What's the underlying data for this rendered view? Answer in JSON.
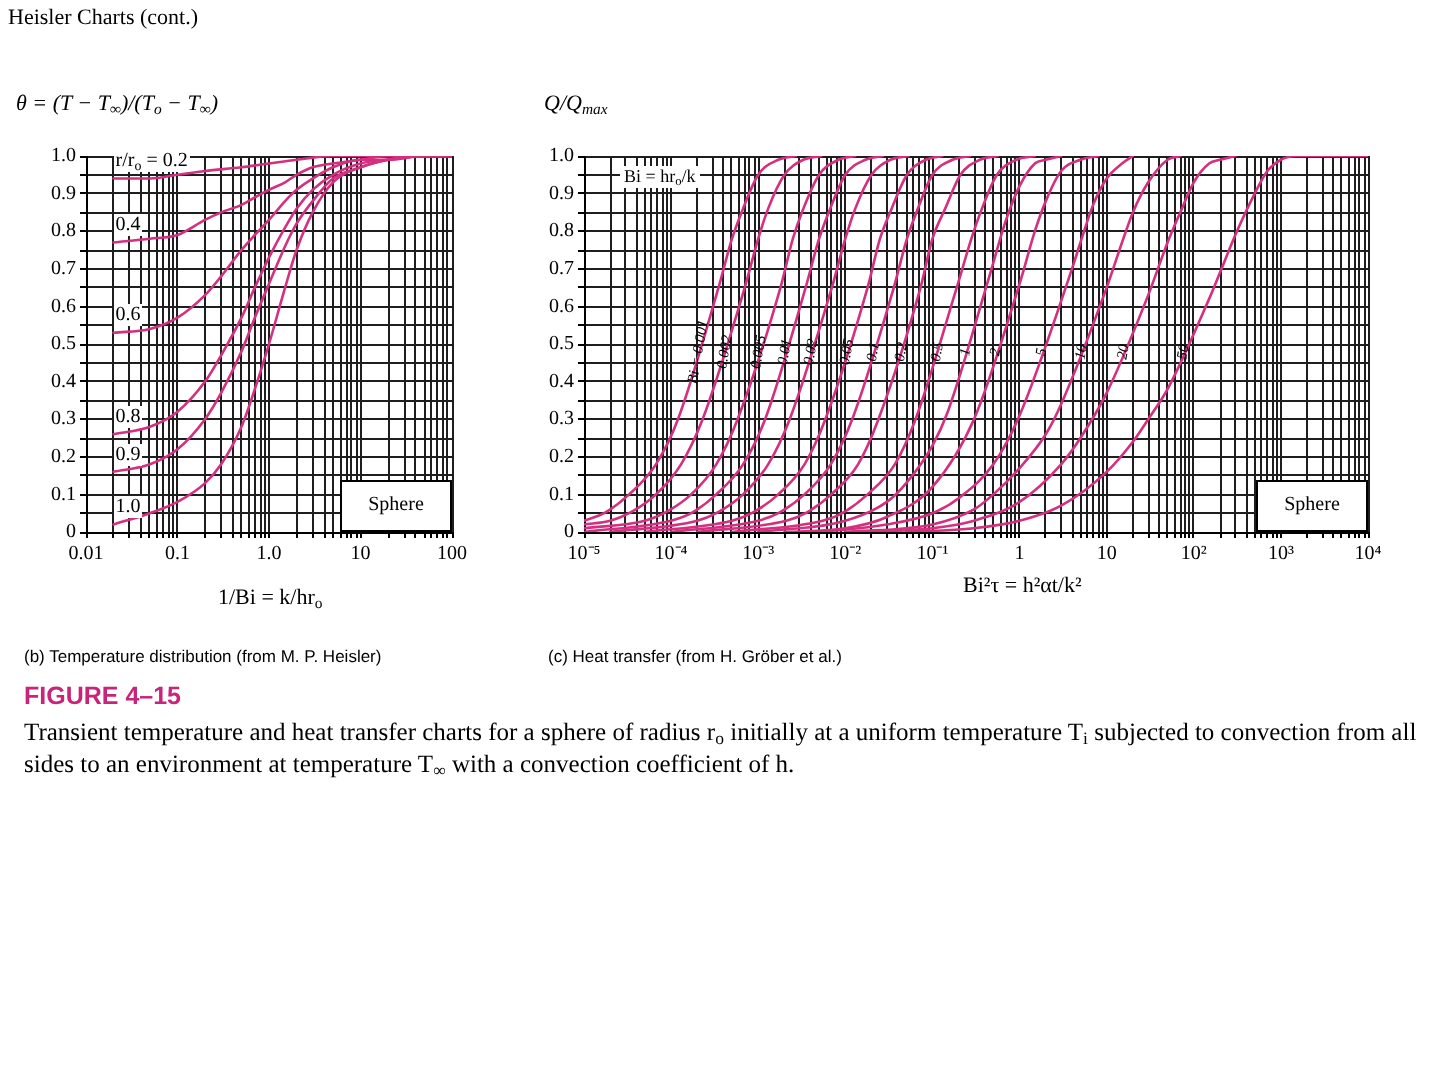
{
  "chart_data": [
    {
      "type": "line",
      "title": "Heisler Charts (cont.)",
      "subtitle": "(b) Temperature distribution (from M. P. Heisler)",
      "ylabel": "θ = (T − T$_{∞}$)/(T$_{o}$ − T$_{∞}$)",
      "xlabel": "1/Bi = k/hr$_{o}$",
      "annotations": [
        "Sphere"
      ],
      "log": "x",
      "grid": true,
      "xlim": [
        0.01,
        100
      ],
      "ylim": [
        0,
        1
      ],
      "xticks": [
        0.01,
        {
          "value": 0.02,
          "label": null
        },
        {
          "value": 0.03,
          "label": null
        },
        {
          "value": 0.04,
          "label": null
        },
        {
          "value": 0.05,
          "label": null
        },
        {
          "value": 0.06,
          "label": null
        },
        {
          "value": 0.07,
          "label": null
        },
        {
          "value": 0.08,
          "label": null
        },
        {
          "value": 0.09,
          "label": null
        },
        0.1,
        {
          "value": 0.2,
          "label": null
        },
        {
          "value": 0.3,
          "label": null
        },
        {
          "value": 0.4,
          "label": null
        },
        {
          "value": 0.5,
          "label": null
        },
        {
          "value": 0.6,
          "label": null
        },
        {
          "value": 0.7,
          "label": null
        },
        {
          "value": 0.8,
          "label": null
        },
        {
          "value": 0.9,
          "label": null
        },
        {
          "value": 1,
          "label": "1.0"
        },
        {
          "value": 2,
          "label": null
        },
        {
          "value": 3,
          "label": null
        },
        {
          "value": 4,
          "label": null
        },
        {
          "value": 5,
          "label": null
        },
        {
          "value": 6,
          "label": null
        },
        {
          "value": 7,
          "label": null
        },
        {
          "value": 8,
          "label": null
        },
        {
          "value": 9,
          "label": null
        },
        10,
        {
          "value": 20,
          "label": null
        },
        {
          "value": 30,
          "label": null
        },
        {
          "value": 40,
          "label": null
        },
        {
          "value": 50,
          "label": null
        },
        {
          "value": 60,
          "label": null
        },
        {
          "value": 70,
          "label": null
        },
        {
          "value": 80,
          "label": null
        },
        {
          "value": 90,
          "label": null
        },
        100
      ],
      "yticks": [
        0,
        {
          "value": 0.05,
          "label": null
        },
        0.1,
        {
          "value": 0.15,
          "label": null
        },
        0.2,
        {
          "value": 0.25,
          "label": null
        },
        0.3,
        {
          "value": 0.35,
          "label": null
        },
        0.4,
        {
          "value": 0.45,
          "label": null
        },
        0.5,
        {
          "value": 0.55,
          "label": null
        },
        0.6,
        {
          "value": 0.65,
          "label": null
        },
        0.7,
        {
          "value": 0.75,
          "label": null
        },
        0.8,
        {
          "value": 0.85,
          "label": null
        },
        0.9,
        {
          "value": 0.95,
          "label": null
        },
        {
          "value": 1,
          "label": "1.0"
        }
      ],
      "series": [
        {
          "name": "r/r$_{o}$ = 0.2",
          "color": "#d4307f",
          "x": [
            0.02,
            0.05,
            0.1,
            0.2,
            0.5,
            1,
            2,
            5,
            100
          ],
          "values": [
            0.94,
            0.94,
            0.95,
            0.96,
            0.97,
            0.98,
            0.99,
            1,
            1
          ]
        },
        {
          "name": "0.4",
          "color": "#d4307f",
          "x": [
            0.02,
            0.05,
            0.1,
            0.2,
            0.3,
            0.5,
            0.7,
            1,
            1.5,
            2,
            3,
            5,
            10,
            20,
            50,
            100
          ],
          "values": [
            0.77,
            0.78,
            0.79,
            0.83,
            0.85,
            0.87,
            0.89,
            0.91,
            0.93,
            0.95,
            0.97,
            0.98,
            0.99,
            1,
            1,
            1
          ]
        },
        {
          "name": "0.6",
          "color": "#d4307f",
          "x": [
            0.02,
            0.05,
            0.1,
            0.2,
            0.3,
            0.5,
            0.7,
            1,
            1.5,
            2,
            3,
            5,
            10,
            20,
            50,
            100
          ],
          "values": [
            0.53,
            0.54,
            0.57,
            0.63,
            0.68,
            0.75,
            0.79,
            0.83,
            0.88,
            0.91,
            0.94,
            0.97,
            0.99,
            0.99,
            1,
            1
          ]
        },
        {
          "name": "0.8",
          "color": "#d4307f",
          "x": [
            0.02,
            0.05,
            0.1,
            0.2,
            0.3,
            0.5,
            0.7,
            1,
            1.5,
            2,
            3,
            5,
            10,
            20,
            50,
            100
          ],
          "values": [
            0.26,
            0.28,
            0.32,
            0.4,
            0.47,
            0.57,
            0.65,
            0.73,
            0.81,
            0.86,
            0.91,
            0.95,
            0.98,
            0.99,
            1,
            1
          ]
        },
        {
          "name": "0.9",
          "color": "#d4307f",
          "x": [
            0.02,
            0.05,
            0.1,
            0.2,
            0.3,
            0.5,
            0.7,
            1,
            1.5,
            2,
            3,
            5,
            10,
            20,
            50,
            100
          ],
          "values": [
            0.16,
            0.18,
            0.22,
            0.3,
            0.37,
            0.48,
            0.57,
            0.66,
            0.76,
            0.82,
            0.88,
            0.94,
            0.97,
            0.99,
            1,
            1
          ]
        },
        {
          "name": "1.0",
          "color": "#d4307f",
          "x": [
            0.02,
            0.05,
            0.1,
            0.2,
            0.3,
            0.5,
            0.7,
            1,
            1.5,
            2,
            3,
            5,
            10,
            20,
            50,
            100
          ],
          "values": [
            0.02,
            0.05,
            0.08,
            0.13,
            0.18,
            0.28,
            0.38,
            0.5,
            0.65,
            0.75,
            0.85,
            0.93,
            0.97,
            0.99,
            1,
            1
          ]
        }
      ]
    },
    {
      "type": "line",
      "subtitle": "(c) Heat transfer (from H. Gröber et al.)",
      "ylabel": "Q/Q$_{max}$",
      "xlabel": "Bi²τ = h²αt/k²",
      "annotations": [
        "Bi = hr$_{o}$/k",
        "Sphere",
        "FIGURE 4–15",
        "Transient temperature and heat transfer charts for a sphere of radius r$_{o}$ initially at a uniform temperature T$_{i}$ subjected to convection from all sides to an environment at temperature T$_{∞}$ with a convection coefficient of h."
      ],
      "log": "x",
      "grid": true,
      "xlim": [
        1e-05,
        10000.0
      ],
      "ylim": [
        0,
        1
      ],
      "xticks": [
        {
          "value": 1e-05,
          "label": "10⁻⁵"
        },
        {
          "value": 2e-05,
          "label": null
        },
        {
          "value": 3e-05,
          "label": null
        },
        {
          "value": 4e-05,
          "label": null
        },
        {
          "value": 5e-05,
          "label": null
        },
        {
          "value": 6e-05,
          "label": null
        },
        {
          "value": 7e-05,
          "label": null
        },
        {
          "value": 8e-05,
          "label": null
        },
        {
          "value": 9e-05,
          "label": null
        },
        {
          "value": 0.0001,
          "label": "10⁻⁴"
        },
        {
          "value": 0.0002,
          "label": null
        },
        {
          "value": 0.0003,
          "label": null
        },
        {
          "value": 0.0004,
          "label": null
        },
        {
          "value": 0.0005,
          "label": null
        },
        {
          "value": 0.0006,
          "label": null
        },
        {
          "value": 0.0007,
          "label": null
        },
        {
          "value": 0.0008,
          "label": null
        },
        {
          "value": 0.0009,
          "label": null
        },
        {
          "value": 0.001,
          "label": "10⁻³"
        },
        {
          "value": 0.002,
          "label": null
        },
        {
          "value": 0.003,
          "label": null
        },
        {
          "value": 0.004,
          "label": null
        },
        {
          "value": 0.005,
          "label": null
        },
        {
          "value": 0.006,
          "label": null
        },
        {
          "value": 0.007,
          "label": null
        },
        {
          "value": 0.008,
          "label": null
        },
        {
          "value": 0.009,
          "label": null
        },
        {
          "value": 0.01,
          "label": "10⁻²"
        },
        {
          "value": 0.02,
          "label": null
        },
        {
          "value": 0.03,
          "label": null
        },
        {
          "value": 0.04,
          "label": null
        },
        {
          "value": 0.05,
          "label": null
        },
        {
          "value": 0.06,
          "label": null
        },
        {
          "value": 0.07,
          "label": null
        },
        {
          "value": 0.08,
          "label": null
        },
        {
          "value": 0.09,
          "label": null
        },
        {
          "value": 0.1,
          "label": "10⁻¹"
        },
        {
          "value": 0.2,
          "label": null
        },
        {
          "value": 0.3,
          "label": null
        },
        {
          "value": 0.4,
          "label": null
        },
        {
          "value": 0.5,
          "label": null
        },
        {
          "value": 0.6,
          "label": null
        },
        {
          "value": 0.7,
          "label": null
        },
        {
          "value": 0.8,
          "label": null
        },
        {
          "value": 0.9,
          "label": null
        },
        1,
        {
          "value": 2,
          "label": null
        },
        {
          "value": 3,
          "label": null
        },
        {
          "value": 4,
          "label": null
        },
        {
          "value": 5,
          "label": null
        },
        {
          "value": 6,
          "label": null
        },
        {
          "value": 7,
          "label": null
        },
        {
          "value": 8,
          "label": null
        },
        {
          "value": 9,
          "label": null
        },
        10,
        {
          "value": 20,
          "label": null
        },
        {
          "value": 30,
          "label": null
        },
        {
          "value": 40,
          "label": null
        },
        {
          "value": 50,
          "label": null
        },
        {
          "value": 60,
          "label": null
        },
        {
          "value": 70,
          "label": null
        },
        {
          "value": 80,
          "label": null
        },
        {
          "value": 90,
          "label": null
        },
        {
          "value": 100,
          "label": "10²"
        },
        {
          "value": 200,
          "label": null
        },
        {
          "value": 300,
          "label": null
        },
        {
          "value": 400,
          "label": null
        },
        {
          "value": 500,
          "label": null
        },
        {
          "value": 600,
          "label": null
        },
        {
          "value": 700,
          "label": null
        },
        {
          "value": 800,
          "label": null
        },
        {
          "value": 900,
          "label": null
        },
        {
          "value": 1000,
          "label": "10³"
        },
        {
          "value": 2000,
          "label": null
        },
        {
          "value": 3000,
          "label": null
        },
        {
          "value": 4000,
          "label": null
        },
        {
          "value": 5000,
          "label": null
        },
        {
          "value": 6000,
          "label": null
        },
        {
          "value": 7000,
          "label": null
        },
        {
          "value": 8000,
          "label": null
        },
        {
          "value": 9000,
          "label": null
        },
        {
          "value": 10000,
          "label": "10⁴"
        }
      ],
      "yticks": [
        0,
        {
          "value": 0.05,
          "label": null
        },
        0.1,
        {
          "value": 0.15,
          "label": null
        },
        0.2,
        {
          "value": 0.25,
          "label": null
        },
        0.3,
        {
          "value": 0.35,
          "label": null
        },
        0.4,
        {
          "value": 0.45,
          "label": null
        },
        0.5,
        {
          "value": 0.55,
          "label": null
        },
        0.6,
        {
          "value": 0.65,
          "label": null
        },
        0.7,
        {
          "value": 0.75,
          "label": null
        },
        0.8,
        {
          "value": 0.85,
          "label": null
        },
        0.9,
        {
          "value": 0.95,
          "label": null
        },
        {
          "value": 1,
          "label": "1.0"
        }
      ],
      "series": [
        {
          "name": "Bi = 0.001",
          "color": "#d4307f",
          "x": [
            1e-05,
            1.7e-05,
            3.3e-05,
            6.7e-05,
            0.00012,
            0.00035,
            0.0005,
            0.00067,
            0.001,
            0.0017,
            0.0027
          ],
          "values": [
            0.03,
            0.05,
            0.1,
            0.18,
            0.3,
            0.65,
            0.78,
            0.86,
            0.95,
            0.99,
            1
          ]
        },
        {
          "name": "0.002",
          "color": "#d4307f",
          "x": [
            1e-05,
            2e-05,
            3.3e-05,
            6.7e-05,
            0.00013,
            0.00023,
            0.0007,
            0.001,
            0.0013,
            0.002,
            0.0033,
            0.0053
          ],
          "values": [
            0.02,
            0.03,
            0.05,
            0.1,
            0.18,
            0.3,
            0.65,
            0.78,
            0.86,
            0.95,
            0.99,
            1
          ]
        },
        {
          "name": "0.005",
          "color": "#d4307f",
          "x": [
            1e-05,
            5e-05,
            8.3e-05,
            0.00017,
            0.00033,
            0.00058,
            0.0018,
            0.0025,
            0.0033,
            0.005,
            0.0083,
            0.013
          ],
          "values": [
            0.01,
            0.03,
            0.05,
            0.1,
            0.18,
            0.3,
            0.65,
            0.78,
            0.86,
            0.95,
            0.99,
            1
          ]
        },
        {
          "name": "0.01",
          "color": "#d4307f",
          "x": [
            1e-05,
            0.0001,
            0.00017,
            0.00033,
            0.00067,
            0.0012,
            0.0035,
            0.005,
            0.0067,
            0.01,
            0.017,
            0.027
          ],
          "values": [
            0,
            0.03,
            0.05,
            0.1,
            0.18,
            0.3,
            0.65,
            0.78,
            0.86,
            0.95,
            0.99,
            1
          ]
        },
        {
          "name": "0.02",
          "color": "#d4307f",
          "x": [
            2e-05,
            0.0002,
            0.00033,
            0.00067,
            0.0013,
            0.0023,
            0.007,
            0.01,
            0.013,
            0.02,
            0.033,
            0.053
          ],
          "values": [
            0,
            0.03,
            0.05,
            0.1,
            0.18,
            0.3,
            0.65,
            0.78,
            0.86,
            0.95,
            0.99,
            1
          ]
        },
        {
          "name": "0.05",
          "color": "#d4307f",
          "x": [
            5e-05,
            0.0005,
            0.00084,
            0.0017,
            0.0034,
            0.0059,
            0.018,
            0.025,
            0.034,
            0.051,
            0.084,
            0.13
          ],
          "values": [
            0,
            0.03,
            0.05,
            0.1,
            0.18,
            0.3,
            0.65,
            0.78,
            0.86,
            0.95,
            0.99,
            1
          ]
        },
        {
          "name": "0.1",
          "color": "#d4307f",
          "x": [
            0.0001,
            0.001,
            0.0017,
            0.0034,
            0.0068,
            0.012,
            0.036,
            0.051,
            0.068,
            0.1,
            0.17,
            0.27
          ],
          "values": [
            0,
            0.03,
            0.05,
            0.1,
            0.18,
            0.3,
            0.65,
            0.78,
            0.86,
            0.95,
            0.99,
            1
          ]
        },
        {
          "name": "0.2",
          "color": "#d4307f",
          "x": [
            0.0002,
            0.0021,
            0.0035,
            0.0069,
            0.014,
            0.024,
            0.073,
            0.1,
            0.14,
            0.21,
            0.35,
            0.56
          ],
          "values": [
            0,
            0.03,
            0.05,
            0.1,
            0.18,
            0.3,
            0.65,
            0.78,
            0.86,
            0.95,
            0.99,
            1
          ]
        },
        {
          "name": "0.5",
          "color": "#d4307f",
          "x": [
            0.0005,
            0.0055,
            0.0092,
            0.018,
            0.037,
            0.064,
            0.19,
            0.28,
            0.37,
            0.55,
            0.92,
            1.5
          ],
          "values": [
            0,
            0.03,
            0.05,
            0.1,
            0.18,
            0.3,
            0.65,
            0.78,
            0.86,
            0.95,
            0.99,
            1
          ]
        },
        {
          "name": "1",
          "color": "#d4307f",
          "x": [
            0.001,
            0.01,
            0.03,
            0.05,
            0.1,
            0.15,
            0.45,
            0.7,
            1,
            1.5,
            2,
            3
          ],
          "values": [
            0,
            0.03,
            0.08,
            0.13,
            0.23,
            0.32,
            0.68,
            0.83,
            0.92,
            0.98,
            0.99,
            1
          ]
        },
        {
          "name": "2",
          "color": "#d4307f",
          "x": [
            0.002,
            0.01,
            0.03,
            0.1,
            0.3,
            1,
            1.5,
            2,
            3,
            5,
            8
          ],
          "values": [
            0,
            0.01,
            0.04,
            0.12,
            0.3,
            0.66,
            0.8,
            0.88,
            0.96,
            0.99,
            1
          ]
        },
        {
          "name": "5",
          "color": "#d4307f",
          "x": [
            0.005,
            0.03,
            0.1,
            0.2,
            0.5,
            1,
            4,
            5,
            7,
            10,
            15,
            20
          ],
          "values": [
            0,
            0.02,
            0.05,
            0.09,
            0.18,
            0.31,
            0.7,
            0.77,
            0.87,
            0.94,
            0.98,
            1
          ]
        },
        {
          "name": "10",
          "color": "#d4307f",
          "x": [
            0.01,
            0.1,
            0.3,
            0.5,
            1,
            2,
            3,
            10,
            15,
            20,
            30,
            50,
            70
          ],
          "values": [
            0,
            0.02,
            0.06,
            0.1,
            0.17,
            0.26,
            0.34,
            0.65,
            0.77,
            0.85,
            0.93,
            0.99,
            1
          ]
        },
        {
          "name": "20",
          "color": "#d4307f",
          "x": [
            0.02,
            0.1,
            0.3,
            1,
            3,
            5,
            10,
            30,
            50,
            70,
            100,
            150,
            200,
            300
          ],
          "values": [
            0,
            0.01,
            0.03,
            0.08,
            0.18,
            0.25,
            0.37,
            0.63,
            0.77,
            0.85,
            0.93,
            0.98,
            0.99,
            1
          ]
        },
        {
          "name": "50",
          "color": "#d4307f",
          "x": [
            0.05,
            0.3,
            1,
            3,
            10,
            20,
            30,
            50,
            150,
            200,
            300,
            500,
            700,
            1000,
            1500,
            10000.0
          ],
          "values": [
            0,
            0.01,
            0.03,
            0.07,
            0.16,
            0.24,
            0.3,
            0.38,
            0.62,
            0.69,
            0.79,
            0.9,
            0.96,
            0.99,
            1,
            1
          ]
        }
      ]
    }
  ]
}
